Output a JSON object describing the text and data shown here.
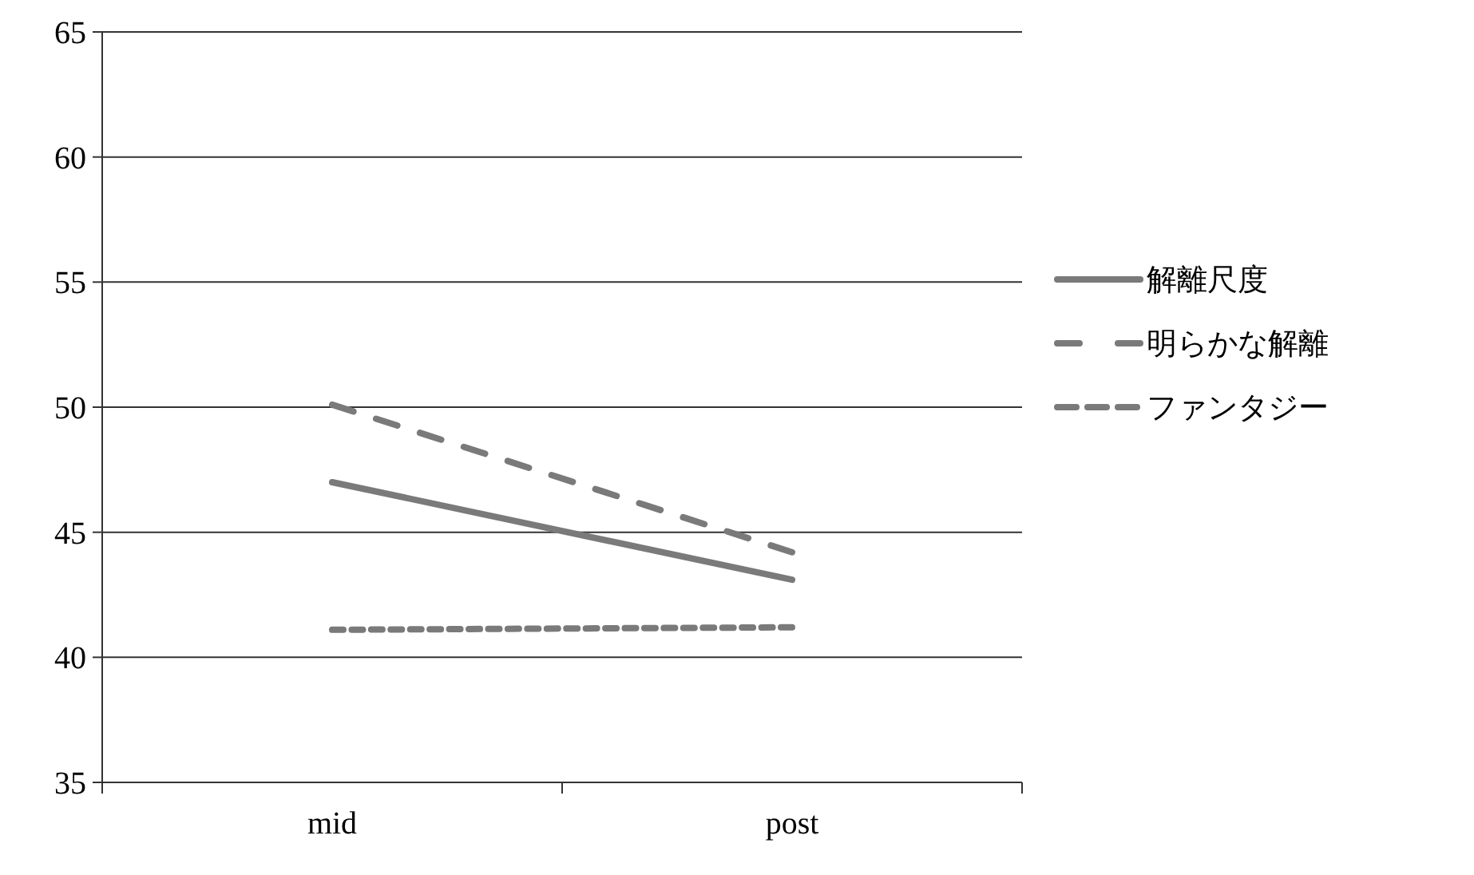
{
  "chart_data": {
    "type": "line",
    "categories": [
      "mid",
      "post"
    ],
    "series": [
      {
        "name": "解離尺度",
        "color": "#7a7a7a",
        "line_style": "solid",
        "values": [
          47.0,
          43.1
        ]
      },
      {
        "name": "明らかな解離",
        "color": "#7a7a7a",
        "line_style": "dashed",
        "values": [
          50.1,
          44.2
        ]
      },
      {
        "name": "ファンタジー",
        "color": "#7a7a7a",
        "line_style": "dotted",
        "values": [
          41.1,
          41.2
        ]
      }
    ],
    "ylim": [
      35,
      65
    ],
    "yticks": [
      35,
      40,
      45,
      50,
      55,
      60,
      65
    ],
    "grid": "y",
    "legend": "right",
    "marker": "none"
  }
}
